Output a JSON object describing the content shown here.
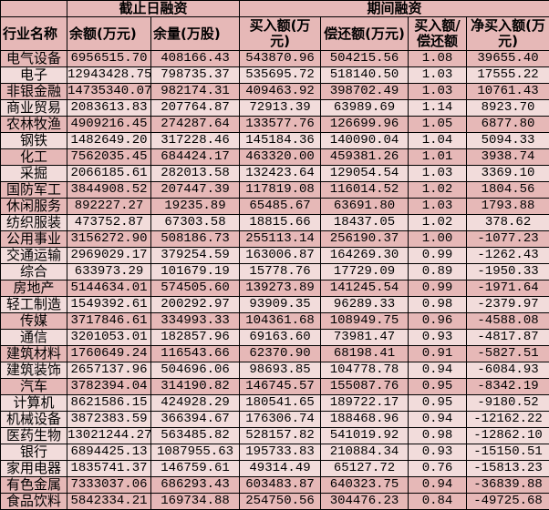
{
  "colors": {
    "header": "#e6b8b7",
    "dark_row": "#e6b8b7",
    "light_row": "#f2dcdb"
  },
  "header": {
    "group1": "截止日融资",
    "group2": "期间融资",
    "columns": [
      "行业名称",
      "余额(万元)",
      "余量(万股)",
      "买入额(万元)",
      "偿还额(万元)",
      "买入额/偿还额",
      "净买入额(万元)"
    ]
  },
  "rows": [
    {
      "shade": "dark",
      "cells": [
        "电气设备",
        "6956515.70",
        "408166.43",
        "543870.96",
        "504215.56",
        "1.08",
        "39655.40"
      ]
    },
    {
      "shade": "light",
      "cells": [
        "电子",
        "12943428.75",
        "798735.37",
        "535695.72",
        "518140.50",
        "1.03",
        "17555.22"
      ]
    },
    {
      "shade": "dark",
      "cells": [
        "非银金融",
        "14735340.07",
        "982174.31",
        "409463.92",
        "398702.49",
        "1.03",
        "10761.43"
      ]
    },
    {
      "shade": "light",
      "cells": [
        "商业贸易",
        "2083613.83",
        "207764.87",
        "72913.39",
        "63989.69",
        "1.14",
        "8923.70"
      ]
    },
    {
      "shade": "dark",
      "cells": [
        "农林牧渔",
        "4909216.45",
        "274287.64",
        "133577.76",
        "126699.96",
        "1.05",
        "6877.80"
      ]
    },
    {
      "shade": "light",
      "cells": [
        "钢铁",
        "1482649.20",
        "317228.46",
        "145184.36",
        "140090.04",
        "1.04",
        "5094.33"
      ]
    },
    {
      "shade": "dark",
      "cells": [
        "化工",
        "7562035.45",
        "684424.17",
        "463320.00",
        "459381.26",
        "1.01",
        "3938.74"
      ]
    },
    {
      "shade": "light",
      "cells": [
        "采掘",
        "2066185.61",
        "282013.58",
        "132423.64",
        "129054.54",
        "1.03",
        "3369.10"
      ]
    },
    {
      "shade": "dark",
      "cells": [
        "国防军工",
        "3844908.52",
        "207447.39",
        "117819.08",
        "116014.52",
        "1.02",
        "1804.56"
      ]
    },
    {
      "shade": "dark",
      "cells": [
        "休闲服务",
        "892227.27",
        "19235.89",
        "65485.67",
        "63691.80",
        "1.03",
        "1793.88"
      ]
    },
    {
      "shade": "light",
      "cells": [
        "纺织服装",
        "473752.87",
        "67303.58",
        "18815.66",
        "18437.05",
        "1.02",
        "378.62"
      ]
    },
    {
      "shade": "dark",
      "cells": [
        "公用事业",
        "3156272.90",
        "508186.73",
        "255113.14",
        "256190.37",
        "1.00",
        "-1077.23"
      ]
    },
    {
      "shade": "light",
      "cells": [
        "交通运输",
        "2969029.17",
        "379254.59",
        "163006.87",
        "164269.30",
        "0.99",
        "-1262.43"
      ]
    },
    {
      "shade": "light",
      "cells": [
        "综合",
        "633973.29",
        "101679.19",
        "15778.76",
        "17729.09",
        "0.89",
        "-1950.33"
      ]
    },
    {
      "shade": "dark",
      "cells": [
        "房地产",
        "5144634.01",
        "574505.60",
        "139273.89",
        "141245.54",
        "0.99",
        "-1971.64"
      ]
    },
    {
      "shade": "light",
      "cells": [
        "轻工制造",
        "1549392.61",
        "200292.97",
        "93909.35",
        "96289.33",
        "0.98",
        "-2379.97"
      ]
    },
    {
      "shade": "dark",
      "cells": [
        "传媒",
        "3717846.61",
        "334993.33",
        "104361.68",
        "108949.75",
        "0.96",
        "-4588.08"
      ]
    },
    {
      "shade": "light",
      "cells": [
        "通信",
        "3201053.01",
        "182857.96",
        "69163.60",
        "73981.47",
        "0.93",
        "-4817.87"
      ]
    },
    {
      "shade": "dark",
      "cells": [
        "建筑材料",
        "1760649.24",
        "116543.66",
        "62370.90",
        "68198.41",
        "0.91",
        "-5827.51"
      ]
    },
    {
      "shade": "light",
      "cells": [
        "建筑装饰",
        "2657137.96",
        "504696.06",
        "98693.85",
        "104778.78",
        "0.94",
        "-6084.93"
      ]
    },
    {
      "shade": "dark",
      "cells": [
        "汽车",
        "3782394.04",
        "314190.82",
        "146745.57",
        "155087.76",
        "0.95",
        "-8342.19"
      ]
    },
    {
      "shade": "light",
      "cells": [
        "计算机",
        "8621586.15",
        "424928.29",
        "180541.65",
        "189722.17",
        "0.95",
        "-9180.52"
      ]
    },
    {
      "shade": "light",
      "cells": [
        "机械设备",
        "3872383.59",
        "366394.67",
        "176306.74",
        "188468.96",
        "0.94",
        "-12162.22"
      ]
    },
    {
      "shade": "light",
      "cells": [
        "医药生物",
        "13021244.27",
        "563485.82",
        "528157.82",
        "541019.92",
        "0.98",
        "-12862.10"
      ]
    },
    {
      "shade": "light",
      "cells": [
        "银行",
        "6894425.13",
        "1087955.63",
        "195733.83",
        "210884.34",
        "0.93",
        "-15150.51"
      ]
    },
    {
      "shade": "light",
      "cells": [
        "家用电器",
        "1835741.37",
        "146759.61",
        "49314.49",
        "65127.72",
        "0.76",
        "-15813.23"
      ]
    },
    {
      "shade": "dark",
      "cells": [
        "有色金属",
        "7333037.06",
        "686293.43",
        "603483.87",
        "640323.75",
        "0.94",
        "-36839.88"
      ]
    },
    {
      "shade": "dark",
      "cells": [
        "食品饮料",
        "5842334.21",
        "169734.88",
        "254750.56",
        "304476.23",
        "0.84",
        "-49725.68"
      ]
    }
  ]
}
